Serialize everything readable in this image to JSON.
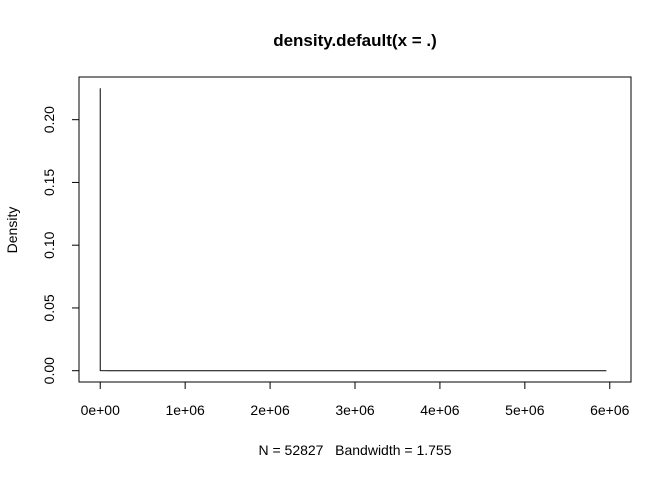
{
  "chart_data": {
    "type": "line",
    "title": "density.default(x = .)",
    "xlabel": "N = 52827   Bandwidth = 1.755",
    "ylabel": "Density",
    "xlim": [
      -250000,
      6250000
    ],
    "ylim": [
      -0.009,
      0.234
    ],
    "x_ticks": [
      {
        "value": 0,
        "label": "0e+00"
      },
      {
        "value": 1000000,
        "label": "1e+06"
      },
      {
        "value": 2000000,
        "label": "2e+06"
      },
      {
        "value": 3000000,
        "label": "3e+06"
      },
      {
        "value": 4000000,
        "label": "4e+06"
      },
      {
        "value": 5000000,
        "label": "5e+06"
      },
      {
        "value": 6000000,
        "label": "6e+06"
      }
    ],
    "y_ticks": [
      {
        "value": 0.0,
        "label": "0.00"
      },
      {
        "value": 0.05,
        "label": "0.05"
      },
      {
        "value": 0.1,
        "label": "0.10"
      },
      {
        "value": 0.15,
        "label": "0.15"
      },
      {
        "value": 0.2,
        "label": "0.20"
      }
    ],
    "series": [
      {
        "color": "#000000",
        "x": [
          -5,
          0,
          3,
          10,
          100,
          1000,
          100000,
          1000000,
          3000000,
          5000000,
          5960000
        ],
        "y": [
          0.0,
          0.225,
          0.01,
          0.002,
          0.0003,
          3e-05,
          3e-07,
          0.0,
          0.0,
          0.0,
          0.0
        ]
      }
    ],
    "grid": false,
    "legend": "none"
  }
}
